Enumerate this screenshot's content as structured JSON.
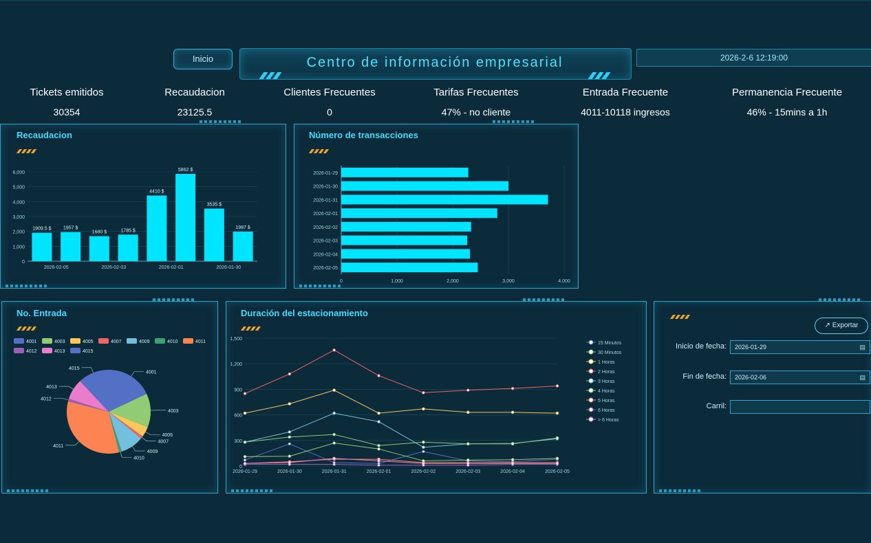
{
  "header": {
    "home_button": "Inicio",
    "title": "Centro de información empresarial",
    "datetime": "2026-2-6 12:19:00"
  },
  "kpis": [
    {
      "label": "Tickets emitidos",
      "value": "30354"
    },
    {
      "label": "Recaudacion",
      "value": "23125.5"
    },
    {
      "label": "Clientes Frecuentes",
      "value": "0"
    },
    {
      "label": "Tarifas Frecuentes",
      "value": "47% - no cliente"
    },
    {
      "label": "Entrada Frecuente",
      "value": "4011-10118 ingresos"
    },
    {
      "label": "Permanencia Frecuente",
      "value": "46% - 15mins a 1h"
    }
  ],
  "panels": {
    "recaudacion": "Recaudacion",
    "transacciones": "Número de transacciones",
    "entrada": "No. Entrada",
    "duracion": "Duración del estacionamiento"
  },
  "form": {
    "export_label": "Exportar",
    "start_label": "Inicio de fecha:",
    "start_value": "2026-01-29",
    "end_label": "Fin de fecha:",
    "end_value": "2026-02-06",
    "lane_label": "Carril:",
    "lane_value": ""
  },
  "colors": {
    "accent": "#00e5ff",
    "title": "#46dbff",
    "background": "#0b2a3a"
  },
  "chart_data": [
    {
      "id": "recaudacion",
      "type": "bar",
      "categories": [
        "2026-02-05",
        "",
        "2026-02-03",
        "",
        "2026-02-01",
        "",
        "2026-01-30",
        ""
      ],
      "values": [
        1909.5,
        1957,
        1680,
        1785,
        4410,
        5862,
        3535,
        1987
      ],
      "data_labels": [
        "1909.5 $",
        "1957 $",
        "1680 $",
        "1785 $",
        "4410 $",
        "5862 $",
        "3535 $",
        "1987 $"
      ],
      "yticks": [
        0,
        1000,
        2000,
        3000,
        4000,
        5000,
        6000
      ],
      "ytick_labels": [
        "0",
        "1,000",
        "2,000",
        "3,000",
        "4,000",
        "5,000",
        "6,000"
      ],
      "ylim": [
        0,
        6000
      ],
      "color": "#00e5ff"
    },
    {
      "id": "transacciones",
      "type": "bar",
      "orientation": "horizontal",
      "categories": [
        "2026-01-29",
        "2026-01-30",
        "2026-01-31",
        "2026-02-01",
        "2026-02-02",
        "2026-02-03",
        "2026-02-04",
        "2026-02-05"
      ],
      "values": [
        2280,
        3000,
        3710,
        2800,
        2330,
        2260,
        2310,
        2450
      ],
      "xticks": [
        0,
        1000,
        2000,
        3000,
        4000
      ],
      "xtick_labels": [
        "0",
        "1,000",
        "2,000",
        "3,000",
        "4,000"
      ],
      "xlim": [
        0,
        4000
      ],
      "color": "#00e5ff"
    },
    {
      "id": "entrada",
      "type": "pie",
      "legend": [
        "4001",
        "4003",
        "4005",
        "4007",
        "4009",
        "4010",
        "4011",
        "4012",
        "4013",
        "4015"
      ],
      "slices": [
        {
          "label": "4001",
          "value": 18,
          "color": "#5470c6"
        },
        {
          "label": "4003",
          "value": 13,
          "color": "#91cc75"
        },
        {
          "label": "4005",
          "value": 4,
          "color": "#fac858"
        },
        {
          "label": "4007",
          "value": 1,
          "color": "#ee6666"
        },
        {
          "label": "4009",
          "value": 9,
          "color": "#73c0de"
        },
        {
          "label": "4010",
          "value": 1,
          "color": "#3ba272"
        },
        {
          "label": "4011",
          "value": 33,
          "color": "#fc8452"
        },
        {
          "label": "4012",
          "value": 1,
          "color": "#9a60b4"
        },
        {
          "label": "4013",
          "value": 8,
          "color": "#ea7ccc"
        },
        {
          "label": "4015",
          "value": 12,
          "color": "#5470c6"
        }
      ]
    },
    {
      "id": "duracion",
      "type": "line",
      "x": [
        "2026-01-29",
        "2026-01-30",
        "2026-01-31",
        "2026-02-01",
        "2026-02-02",
        "2026-02-03",
        "2026-02-04",
        "2026-02-05"
      ],
      "yticks": [
        0,
        300,
        600,
        900,
        1200,
        1500
      ],
      "ytick_labels": [
        "0",
        "300",
        "600",
        "900",
        "1,200",
        "1,500"
      ],
      "ylim": [
        0,
        1500
      ],
      "series": [
        {
          "name": "15 Minutos",
          "color": "#5470c6",
          "values": [
            70,
            260,
            40,
            30,
            170,
            60,
            50,
            80
          ]
        },
        {
          "name": "30 Minutos",
          "color": "#91cc75",
          "values": [
            110,
            115,
            270,
            200,
            60,
            70,
            75,
            90
          ]
        },
        {
          "name": "1 Horas",
          "color": "#fac858",
          "values": [
            620,
            730,
            890,
            620,
            670,
            630,
            630,
            620
          ]
        },
        {
          "name": "2 Horas",
          "color": "#ee6666",
          "values": [
            850,
            1080,
            1360,
            1060,
            860,
            890,
            910,
            940
          ]
        },
        {
          "name": "3 Horas",
          "color": "#73c0de",
          "values": [
            280,
            400,
            620,
            520,
            220,
            260,
            265,
            320
          ]
        },
        {
          "name": "4 Horas",
          "color": "#91cc75",
          "values": [
            280,
            340,
            370,
            240,
            280,
            260,
            260,
            330
          ]
        },
        {
          "name": "5 Horas",
          "color": "#fc8452",
          "values": [
            30,
            50,
            80,
            80,
            40,
            40,
            40,
            40
          ]
        },
        {
          "name": "6 Horas",
          "color": "#9a60b4",
          "values": [
            20,
            20,
            20,
            10,
            10,
            10,
            20,
            20
          ]
        },
        {
          "name": "> 6 Horas",
          "color": "#ea7ccc",
          "values": [
            30,
            40,
            90,
            60,
            30,
            30,
            30,
            30
          ]
        }
      ]
    }
  ]
}
